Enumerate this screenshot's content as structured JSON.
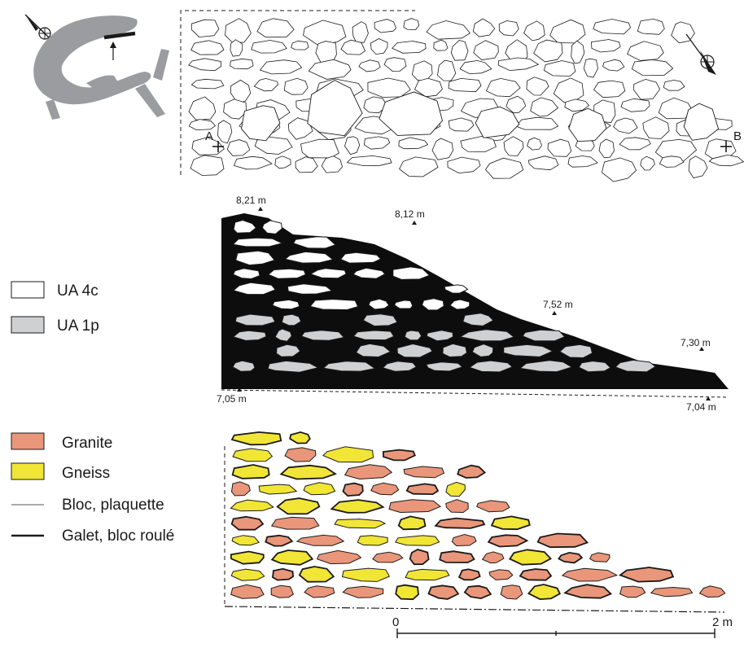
{
  "colors": {
    "ua4c": "#ffffff",
    "ua1p": "#cfd0d2",
    "fill_black": "#0d0d0d",
    "granite": "#e9967a",
    "gneiss": "#f1e536",
    "plan_gray": "#9a9c9f",
    "outline": "#1a1a1a"
  },
  "plan": {
    "point_a": "A",
    "point_b": "B"
  },
  "elevation": {
    "labels": [
      "8,21 m",
      "8,12 m",
      "7,52 m",
      "7,30 m",
      "7,05 m",
      "7,04 m"
    ]
  },
  "legend_units": [
    {
      "label": "UA 4c",
      "swatch": "ua4c"
    },
    {
      "label": "UA 1p",
      "swatch": "ua1p"
    }
  ],
  "legend_materials": [
    {
      "label": "Granite",
      "swatch": "granite"
    },
    {
      "label": "Gneiss",
      "swatch": "gneiss"
    },
    {
      "label": "Bloc, plaquette",
      "line": "thin"
    },
    {
      "label": "Galet, bloc roulé",
      "line": "thick"
    }
  ],
  "scale": {
    "start_label": "0",
    "end_label": "2 m"
  }
}
